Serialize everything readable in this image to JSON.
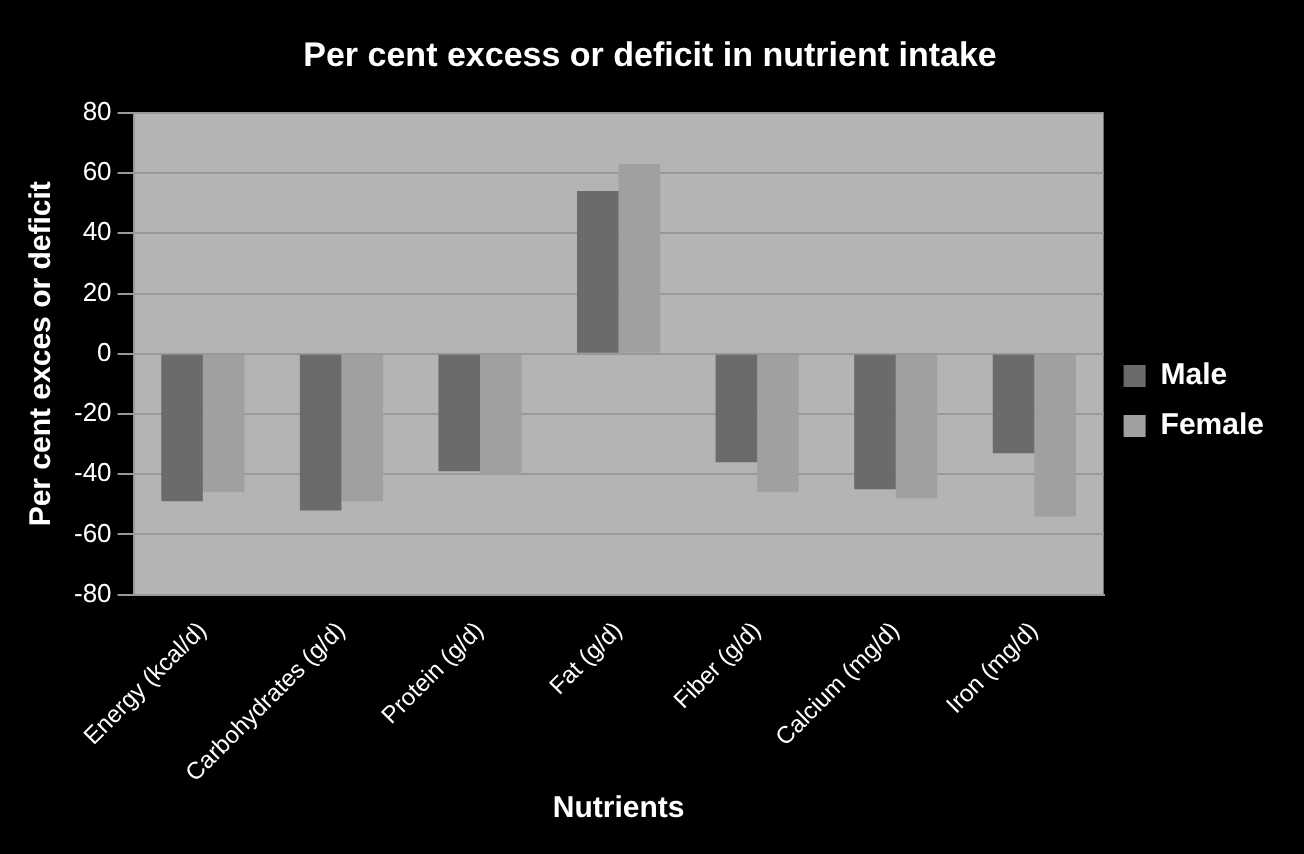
{
  "chart_data": {
    "type": "bar",
    "title": "Per cent excess or deficit in nutrient intake",
    "xlabel": "Nutrients",
    "ylabel": "Per cent exces or deficit",
    "categories": [
      "Energy (kcal/d)",
      "Carbohydrates (g/d)",
      "Protein (g/d)",
      "Fat (g/d)",
      "Fiber (g/d)",
      "Calcium (mg/d)",
      "Iron (mg/d)"
    ],
    "series": [
      {
        "name": "Male",
        "color": "#6b6b6b",
        "values": [
          -49,
          -52,
          -39,
          54,
          -36,
          -45,
          -33
        ]
      },
      {
        "name": "Female",
        "color": "#a0a0a0",
        "values": [
          -46,
          -49,
          -40,
          63,
          -46,
          -48,
          -54
        ]
      }
    ],
    "ylim": [
      -80,
      80
    ],
    "yticks": [
      -80,
      -60,
      -40,
      -20,
      0,
      20,
      40,
      60,
      80
    ],
    "grid": "y",
    "legend": "right"
  }
}
